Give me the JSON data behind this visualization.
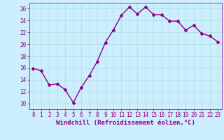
{
  "x": [
    0,
    1,
    2,
    3,
    4,
    5,
    6,
    7,
    8,
    9,
    10,
    11,
    12,
    13,
    14,
    15,
    16,
    17,
    18,
    19,
    20,
    21,
    22,
    23
  ],
  "y": [
    15.9,
    15.5,
    13.1,
    13.3,
    12.3,
    10.1,
    12.7,
    14.7,
    17.1,
    20.3,
    22.4,
    24.9,
    26.3,
    25.1,
    26.3,
    25.0,
    25.0,
    23.9,
    23.9,
    22.4,
    23.2,
    21.8,
    21.4,
    20.4
  ],
  "line_color": "#8B008B",
  "marker": "D",
  "marker_size": 2,
  "bg_color": "#cceeff",
  "grid_color": "#aadddd",
  "xlabel": "Windchill (Refroidissement éolien,°C)",
  "xlabel_color": "#8B008B",
  "xlim": [
    -0.5,
    23.5
  ],
  "ylim": [
    9,
    27
  ],
  "yticks": [
    10,
    12,
    14,
    16,
    18,
    20,
    22,
    24,
    26
  ],
  "xticks": [
    0,
    1,
    2,
    3,
    4,
    5,
    6,
    7,
    8,
    9,
    10,
    11,
    12,
    13,
    14,
    15,
    16,
    17,
    18,
    19,
    20,
    21,
    22,
    23
  ],
  "tick_color": "#8B008B",
  "tick_fontsize": 5.5,
  "xlabel_fontsize": 6.5,
  "line_width": 1.0
}
